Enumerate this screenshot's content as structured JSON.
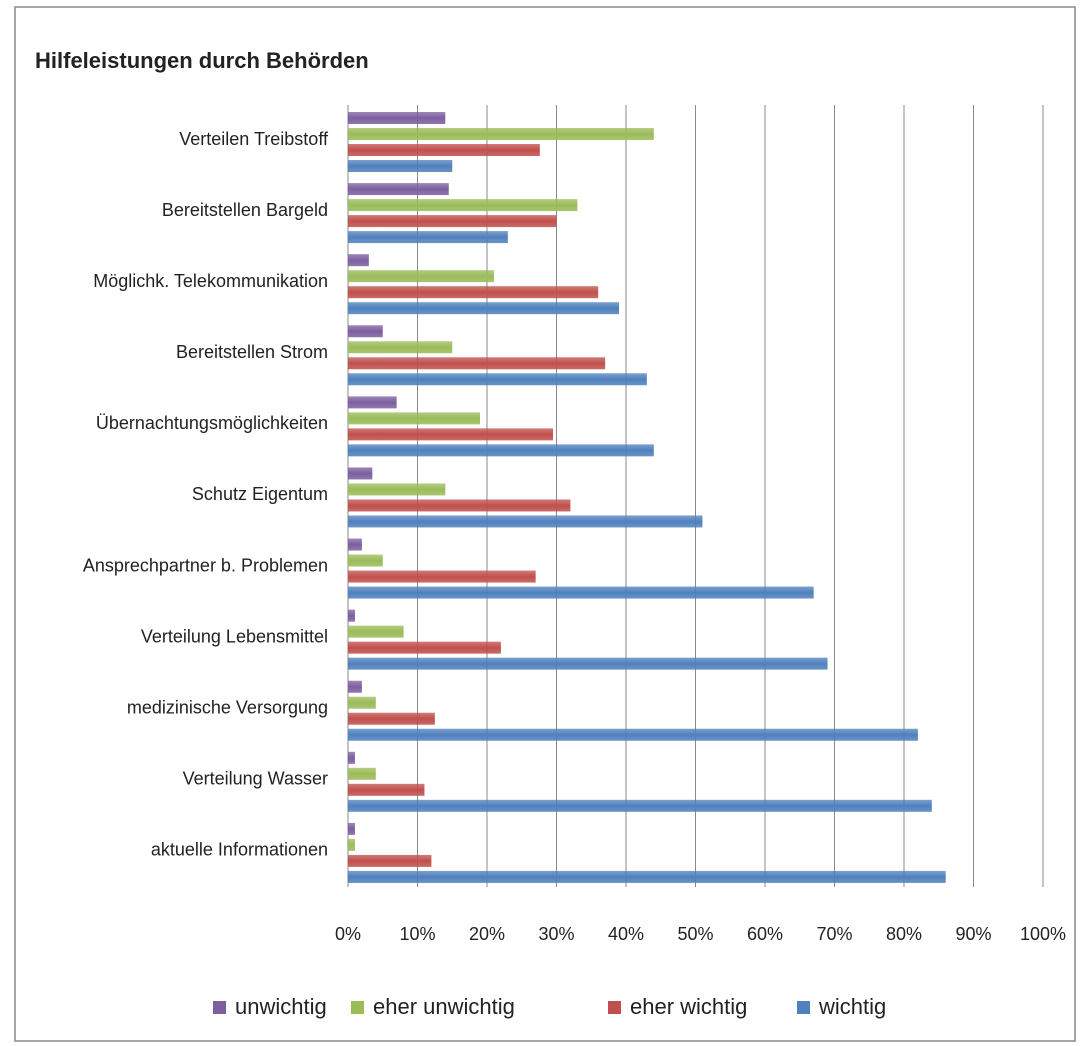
{
  "chart_data": {
    "type": "bar",
    "orientation": "horizontal",
    "title": "Hilfeleistungen durch Behörden",
    "categories": [
      "Verteilen Treibstoff",
      "Bereitstellen Bargeld",
      "Möglichk. Telekommunikation",
      "Bereitstellen Strom",
      "Übernachtungsmöglichkeiten",
      "Schutz Eigentum",
      "Ansprechpartner b. Problemen",
      "Verteilung Lebensmittel",
      "medizinische Versorgung",
      "Verteilung Wasser",
      "aktuelle Informationen"
    ],
    "series": [
      {
        "name": "unwichtig",
        "color": "#7d5fa0",
        "values": [
          14,
          14.5,
          3,
          5,
          7,
          3.5,
          2,
          1,
          2,
          1,
          1
        ]
      },
      {
        "name": "eher unwichtig",
        "color": "#9bbb59",
        "values": [
          44,
          33,
          21,
          15,
          19,
          14,
          5,
          8,
          4,
          4,
          1
        ]
      },
      {
        "name": "eher wichtig",
        "color": "#c0504d",
        "values": [
          27.6,
          30,
          36,
          37,
          29.5,
          32,
          27,
          22,
          12.5,
          11,
          12
        ]
      },
      {
        "name": "wichtig",
        "color": "#4f81bd",
        "values": [
          15,
          23,
          39,
          43,
          44,
          51,
          67,
          69,
          82,
          84,
          86
        ]
      }
    ],
    "xlim": [
      0,
      100
    ],
    "xticks": [
      {
        "value": 0,
        "label": "0%"
      },
      {
        "value": 10,
        "label": "10%"
      },
      {
        "value": 20,
        "label": "20%"
      },
      {
        "value": 30,
        "label": "30%"
      },
      {
        "value": 40,
        "label": "40%"
      },
      {
        "value": 50,
        "label": "50%"
      },
      {
        "value": 60,
        "label": "60%"
      },
      {
        "value": 70,
        "label": "70%"
      },
      {
        "value": 80,
        "label": "80%"
      },
      {
        "value": 90,
        "label": "90%"
      },
      {
        "value": 100,
        "label": "100%"
      }
    ],
    "grid": true,
    "legend": "bottom"
  }
}
